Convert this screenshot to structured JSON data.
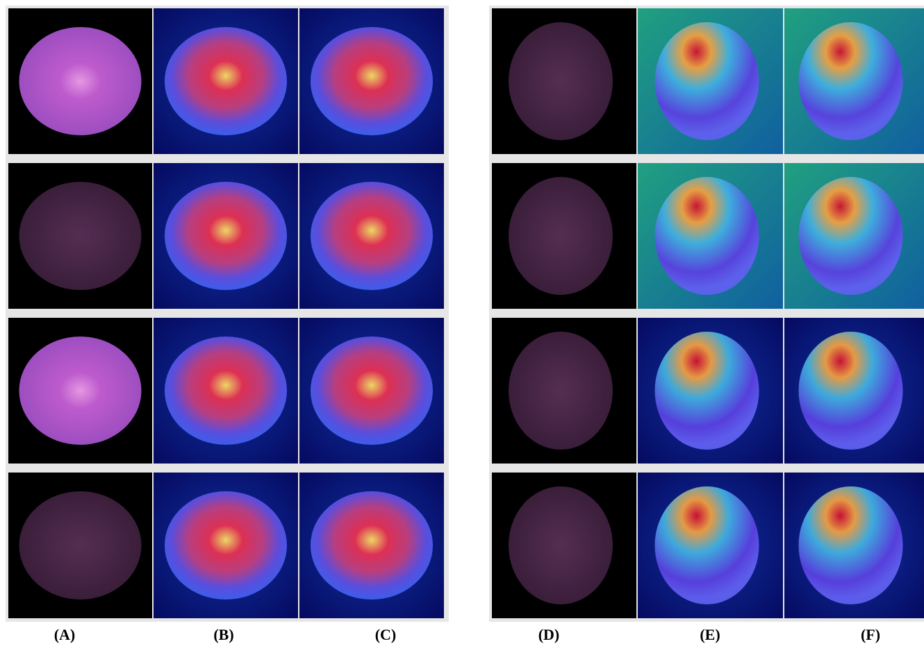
{
  "columns": [
    {
      "label": "(A)"
    },
    {
      "label": "(B)"
    },
    {
      "label": "(C)"
    },
    {
      "label": "(D)"
    },
    {
      "label": "(E)"
    },
    {
      "label": "(F)"
    }
  ]
}
